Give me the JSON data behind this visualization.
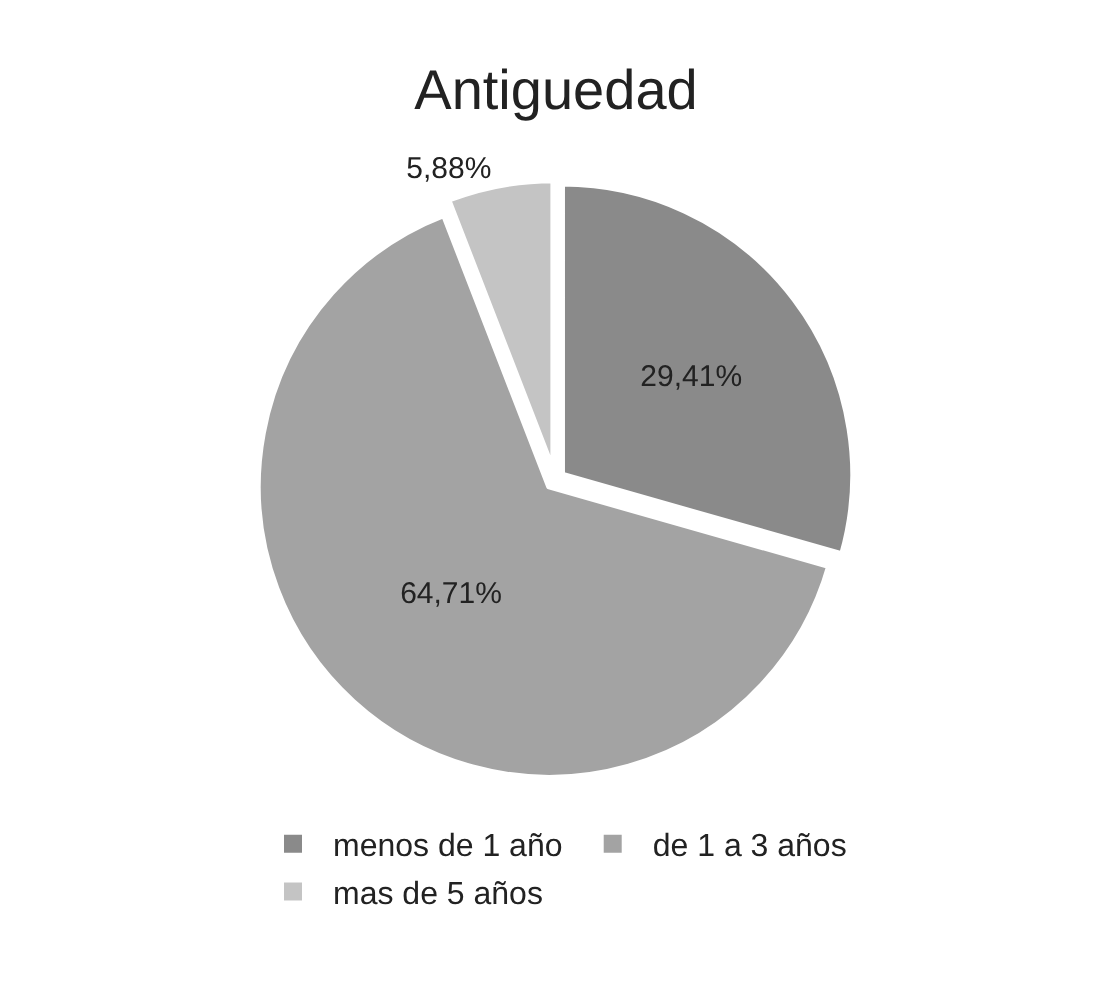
{
  "chart_data": {
    "type": "pie",
    "title": "Antiguedad",
    "categories": [
      "menos de 1 año",
      "de 1 a 3 años",
      "mas de 5 años"
    ],
    "values": [
      29.41,
      64.71,
      5.88
    ],
    "value_labels": [
      "29,41%",
      "64,71%",
      "5,88%"
    ],
    "colors": [
      "#8a8a8a",
      "#a3a3a3",
      "#c4c4c4"
    ],
    "legend": "bottom"
  }
}
